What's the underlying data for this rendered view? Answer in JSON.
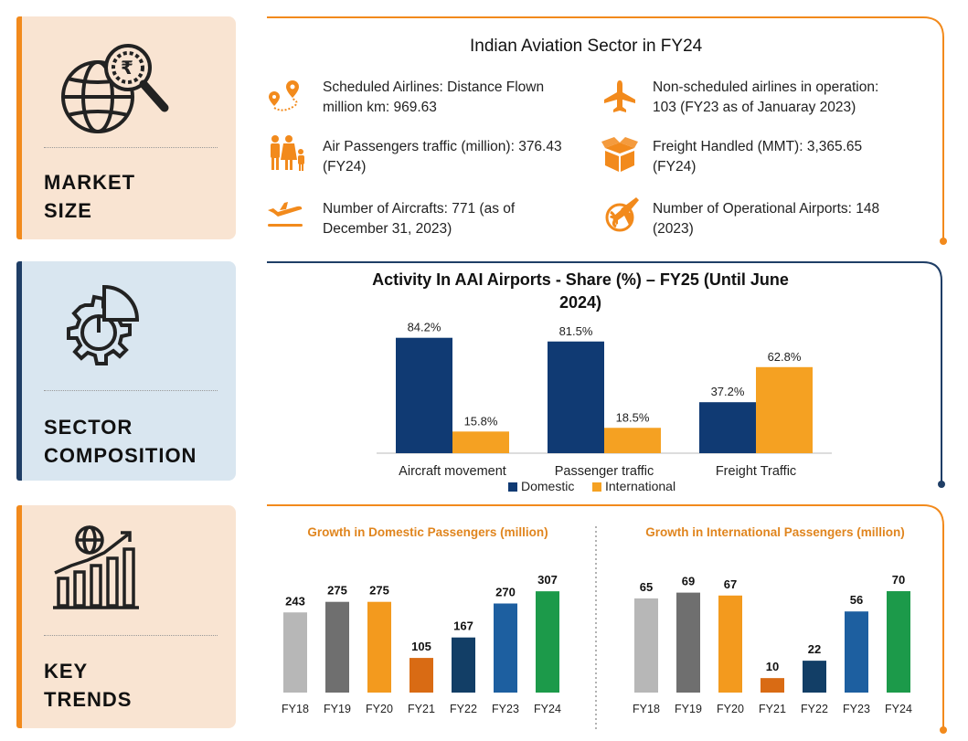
{
  "panels": {
    "market": {
      "title_line1": "MARKET",
      "title_line2": "SIZE",
      "icon": "globe-rupee-magnifier-icon"
    },
    "sector": {
      "title_line1": "SECTOR",
      "title_line2": "COMPOSITION",
      "icon": "gear-pie-chart-icon"
    },
    "trends": {
      "title_line1": "KEY",
      "title_line2": "TRENDS",
      "icon": "globe-growth-bars-icon"
    }
  },
  "market_size": {
    "title": "Indian Aviation Sector in FY24",
    "stats": [
      {
        "icon": "route-pin-icon",
        "line1": "Scheduled Airlines: Distance Flown",
        "line2": "million km: 969.63"
      },
      {
        "icon": "airplane-icon",
        "line1": "Non-scheduled airlines in operation:",
        "line2": "103 (FY23 as of Januaray 2023)"
      },
      {
        "icon": "passengers-icon",
        "line1": "Air Passengers traffic (million): 376.43",
        "line2": "(FY24)"
      },
      {
        "icon": "freight-box-icon",
        "line1": "Freight Handled (MMT): 3,365.65",
        "line2": "(FY24)"
      },
      {
        "icon": "aircraft-takeoff-icon",
        "line1": "Number of Aircrafts: 771 (as of",
        "line2": "December 31, 2023)"
      },
      {
        "icon": "airport-globe-icon",
        "line1": "Number of Operational Airports: 148",
        "line2": "(2023)"
      }
    ]
  },
  "colors": {
    "orange": "#f28a1c",
    "navy": "#1f3e66",
    "domestic": "#103a73",
    "international": "#f5a122"
  },
  "chart_data": [
    {
      "type": "bar",
      "title": "Activity In AAI Airports - Share (%) – FY25 (Until June 2024)",
      "categories": [
        "Aircraft movement",
        "Passenger traffic",
        "Freight Traffic"
      ],
      "series": [
        {
          "name": "Domestic",
          "values": [
            84.2,
            81.5,
            37.2
          ],
          "labels": [
            "84.2%",
            "81.5%",
            "37.2%"
          ],
          "color": "#103a73"
        },
        {
          "name": "International",
          "values": [
            15.8,
            18.5,
            62.8
          ],
          "labels": [
            "15.8%",
            "18.5%",
            "62.8%"
          ],
          "color": "#f5a122"
        }
      ],
      "ylim": [
        0,
        100
      ],
      "grid": false,
      "legend": "bottom"
    },
    {
      "type": "bar",
      "title": "Growth in Domestic Passengers (million)",
      "categories": [
        "FY18",
        "FY19",
        "FY20",
        "FY21",
        "FY22",
        "FY23",
        "FY24"
      ],
      "values": [
        243,
        275,
        275,
        105,
        167,
        270,
        307
      ],
      "colors": [
        "#b7b7b7",
        "#6f6f6f",
        "#f39a1e",
        "#d96b14",
        "#123e66",
        "#1d5fa0",
        "#1c9a4a"
      ],
      "ylim": [
        0,
        360
      ],
      "grid": false
    },
    {
      "type": "bar",
      "title": "Growth in International Passengers (million)",
      "categories": [
        "FY18",
        "FY19",
        "FY20",
        "FY21",
        "FY22",
        "FY23",
        "FY24"
      ],
      "values": [
        65,
        69,
        67,
        10,
        22,
        56,
        70
      ],
      "colors": [
        "#b7b7b7",
        "#6f6f6f",
        "#f39a1e",
        "#d96b14",
        "#123e66",
        "#1d5fa0",
        "#1c9a4a"
      ],
      "ylim": [
        0,
        82
      ],
      "grid": false
    }
  ]
}
